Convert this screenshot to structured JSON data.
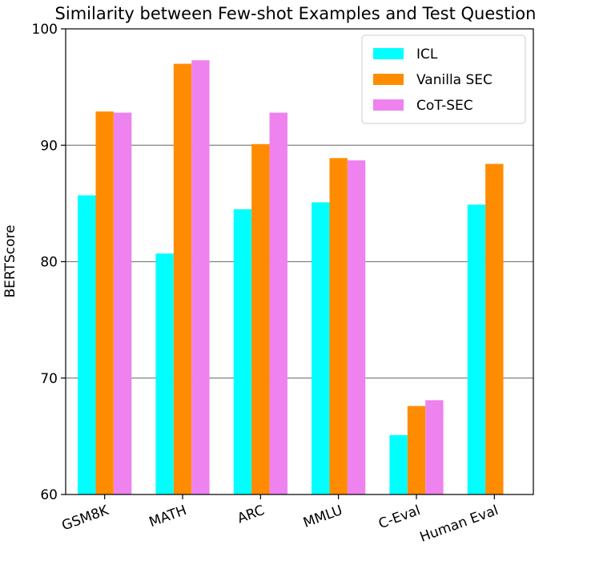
{
  "chart_data": {
    "type": "bar",
    "title": "Similarity between Few-shot Examples and Test Question",
    "xlabel": "",
    "ylabel": "BERTScore",
    "ylim": [
      60,
      100
    ],
    "yticks": [
      60,
      70,
      80,
      90,
      100
    ],
    "grid": "horizontal",
    "legend_position": "top-right",
    "categories": [
      "GSM8K",
      "MATH",
      "ARC",
      "MMLU",
      "C-Eval",
      "Human Eval"
    ],
    "series": [
      {
        "name": "ICL",
        "color": "#00FFFF",
        "values": [
          85.7,
          80.7,
          84.5,
          85.1,
          65.1,
          84.9
        ]
      },
      {
        "name": "Vanilla SEC",
        "color": "#FF8C00",
        "values": [
          92.9,
          97.0,
          90.1,
          88.9,
          67.6,
          88.4
        ]
      },
      {
        "name": "CoT-SEC",
        "color": "#EE82EE",
        "values": [
          92.8,
          97.3,
          92.8,
          88.7,
          68.1,
          null
        ]
      }
    ]
  }
}
